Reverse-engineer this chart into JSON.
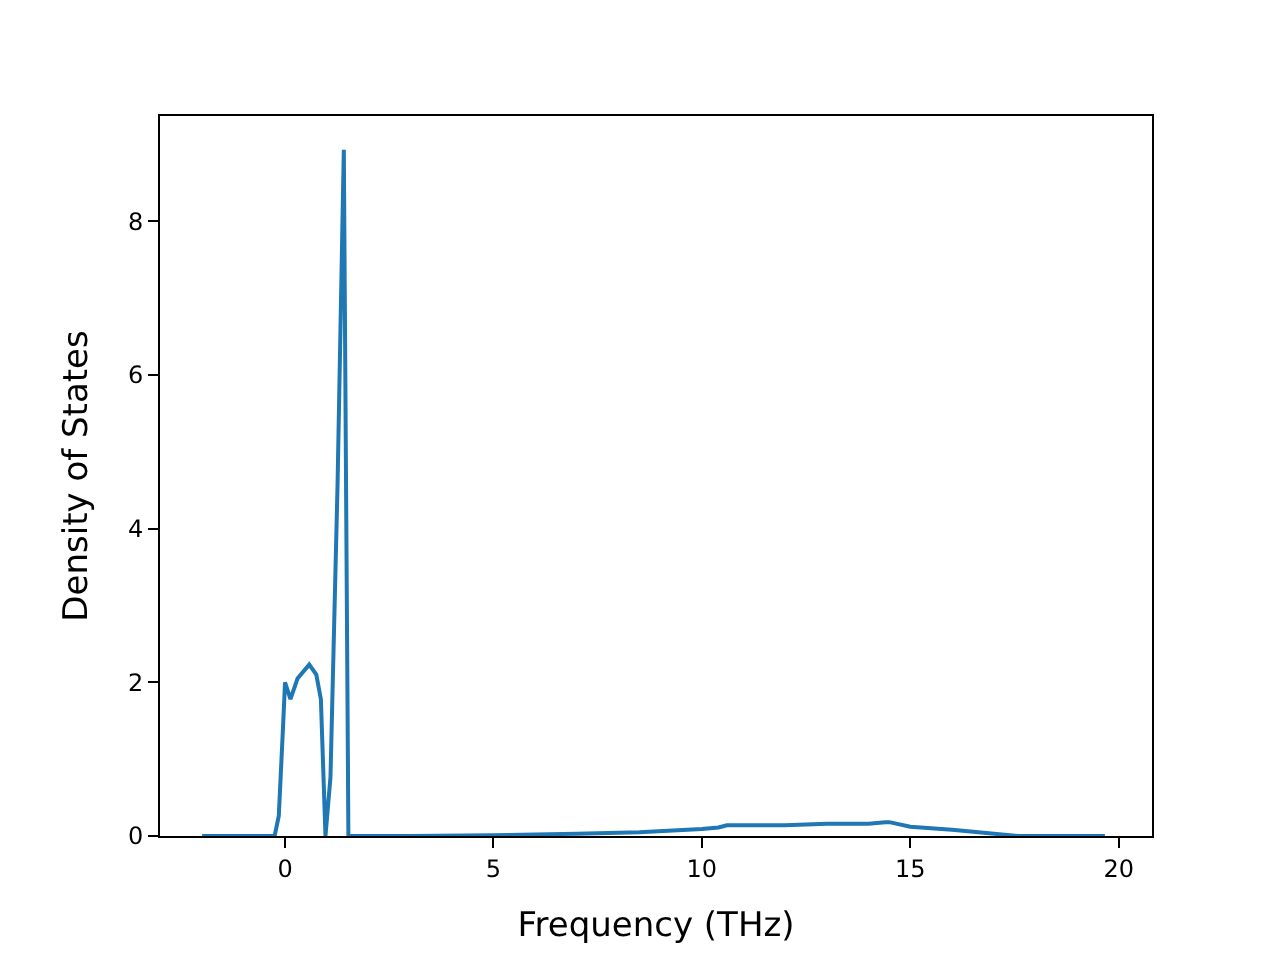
{
  "chart_data": {
    "type": "line",
    "xlabel": "Frequency (THz)",
    "ylabel": "Density of States",
    "series": [
      {
        "color": "#1f77b4",
        "x": [
          -1.99,
          -0.25,
          -0.15,
          -0.05,
          0.0,
          0.13,
          0.3,
          0.58,
          0.75,
          0.86,
          0.97,
          1.09,
          1.26,
          1.41,
          1.52,
          3.0,
          5.0,
          7.0,
          8.5,
          10.0,
          10.4,
          10.6,
          12.0,
          13.0,
          14.0,
          14.4,
          14.5,
          15.0,
          16.0,
          17.6,
          19.67
        ],
        "values": [
          0,
          0,
          0.26,
          1.4,
          2.0,
          1.78,
          2.05,
          2.23,
          2.1,
          1.78,
          0,
          0.77,
          4.58,
          8.93,
          0,
          0,
          0.01,
          0.03,
          0.05,
          0.09,
          0.11,
          0.14,
          0.14,
          0.16,
          0.16,
          0.18,
          0.18,
          0.12,
          0.08,
          0,
          0
        ]
      }
    ],
    "xlim": [
      -3.0,
      20.8
    ],
    "ylim": [
      0,
      9.37
    ],
    "xticks": [
      0,
      5,
      10,
      15,
      20
    ],
    "yticks": [
      0,
      2,
      4,
      6,
      8
    ],
    "marker": "none",
    "line_style": "solid"
  }
}
